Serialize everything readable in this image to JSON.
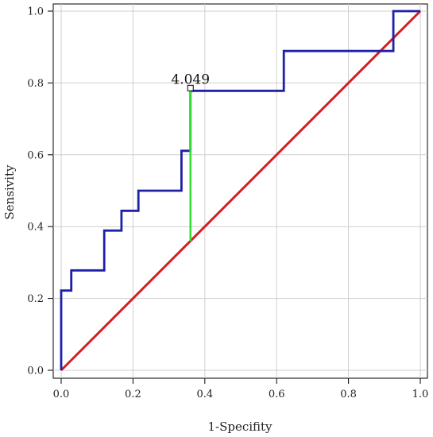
{
  "chart_data": {
    "type": "line",
    "title": "",
    "xlabel": "1-Specifity",
    "ylabel": "Sensivity",
    "xlim": [
      0,
      1
    ],
    "ylim": [
      0,
      1
    ],
    "x_ticks": [
      "0.0",
      "0.2",
      "0.4",
      "0.6",
      "0.8",
      "1.0"
    ],
    "y_ticks": [
      "0.0",
      "0.2",
      "0.4",
      "0.6",
      "0.8",
      "1.0"
    ],
    "grid": true,
    "series": [
      {
        "color": "#1f1fa8",
        "x": [
          0,
          0,
          0.028,
          0.028,
          0.12,
          0.12,
          0.168,
          0.168,
          0.215,
          0.215,
          0.335,
          0.335,
          0.36,
          0.36,
          0.62,
          0.62,
          0.925,
          0.925,
          1.0
        ],
        "y": [
          0,
          0.222,
          0.222,
          0.278,
          0.278,
          0.389,
          0.389,
          0.444,
          0.444,
          0.5,
          0.5,
          0.611,
          0.611,
          0.778,
          0.778,
          0.889,
          0.889,
          1.0,
          1.0
        ]
      },
      {
        "color": "#d42020",
        "x": [
          0,
          1
        ],
        "y": [
          0,
          1
        ]
      }
    ],
    "annotation": {
      "label": "4.049",
      "x": 0.36,
      "y_top": 0.778,
      "y_bottom": 0.36,
      "line_color": "#33dd33"
    }
  }
}
